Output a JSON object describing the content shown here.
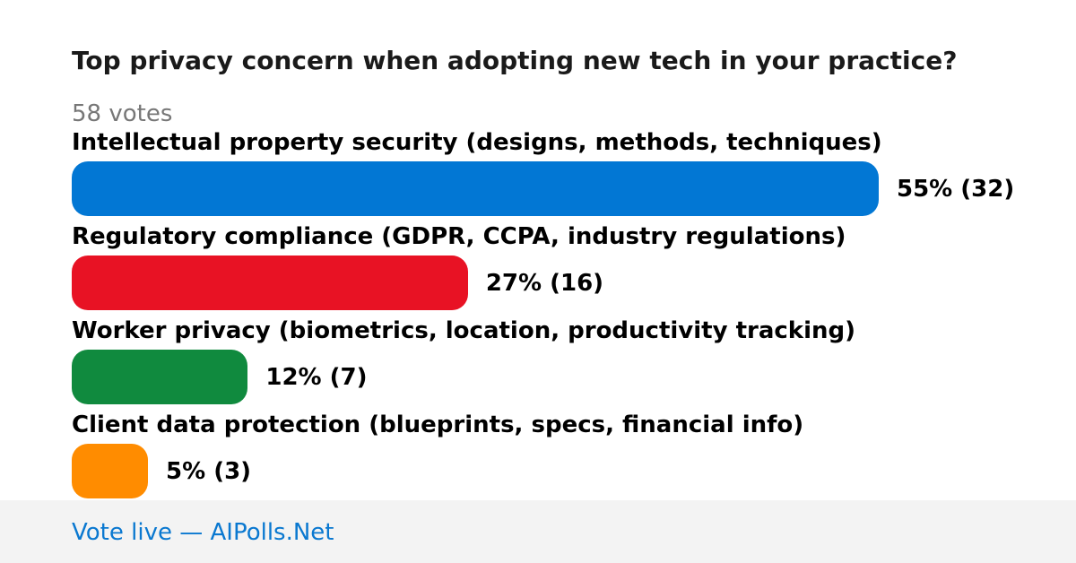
{
  "poll": {
    "title": "Top privacy concern when adopting new tech in your practice?",
    "votes_label": "58 votes"
  },
  "chart_data": {
    "type": "bar",
    "orientation": "horizontal",
    "categories": [
      "Intellectual property security (designs, methods, techniques)",
      "Regulatory compliance (GDPR, CCPA, industry regulations)",
      "Worker privacy (biometrics, location, productivity tracking)",
      "Client data protection (blueprints, specs, financial info)"
    ],
    "values": [
      55,
      27,
      12,
      5
    ],
    "counts": [
      32,
      16,
      7,
      3
    ],
    "value_labels": [
      "55% (32)",
      "27% (16)",
      "12% (7)",
      "5% (3)"
    ],
    "colors": [
      "#0277d4",
      "#e81224",
      "#108a3e",
      "#ff8c00"
    ],
    "title": "Top privacy concern when adopting new tech in your practice?",
    "xlabel": "",
    "ylabel": "",
    "xlim": [
      0,
      55
    ],
    "grid": false
  },
  "footer": {
    "link_text": "Vote live — AIPolls.Net",
    "link_color": "#0a78d0"
  }
}
